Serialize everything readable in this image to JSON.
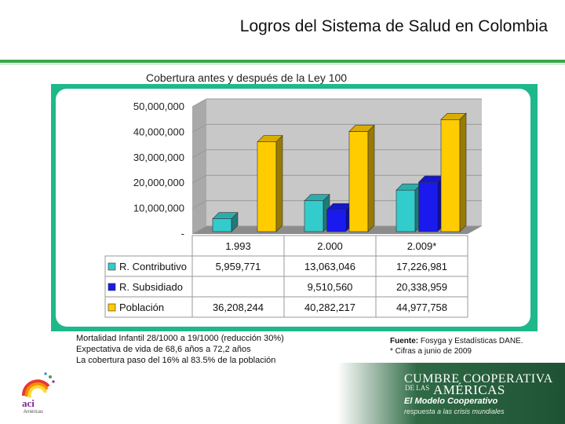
{
  "header": {
    "title": "Logros del Sistema de Salud en Colombia"
  },
  "chart_data": {
    "type": "bar",
    "title": "Cobertura antes y después de la Ley 100",
    "categories": [
      "1.993",
      "2.000",
      "2.009*"
    ],
    "series": [
      {
        "name": "R. Contributivo",
        "color": "#33cccc",
        "values": [
          5959771,
          13063046,
          17226981
        ],
        "labels": [
          "5,959,771",
          "13,063,046",
          "17,226,981"
        ]
      },
      {
        "name": "R. Subsidiado",
        "color": "#1a1aee",
        "values": [
          null,
          9510560,
          20338959
        ],
        "labels": [
          "",
          "9,510,560",
          "20,338,959"
        ]
      },
      {
        "name": "Población",
        "color": "#ffcc00",
        "values": [
          36208244,
          40282217,
          44977758
        ],
        "labels": [
          "36,208,244",
          "40,282,217",
          "44,977,758"
        ]
      }
    ],
    "yticks": [
      "50,000,000",
      "40,000,000",
      "30,000,000",
      "20,000,000",
      "10,000,000",
      "-"
    ],
    "ylim": [
      0,
      50000000
    ],
    "grid": true,
    "legend": "data-table"
  },
  "notes": {
    "line1": "Mortalidad Infantil 28/1000 a 19/1000 (reducción 30%)",
    "line2": "Expectativa de vida de 68,6 años a 72,2 años",
    "line3": "La cobertura paso del 16% al 83.5% de la población"
  },
  "source": {
    "label": "Fuente:",
    "text": "Fosyga y Estadísticas DANE.",
    "footnote": "* Cifras a junio de 2009"
  },
  "branding": {
    "line1": "CUMBRE COOPERATIVA",
    "line2": "DE LAS",
    "line3": "AMÉRICAS",
    "line4": "El Modelo Cooperativo",
    "line5": "respuesta a las crisis mundiales"
  },
  "logo": {
    "text": "aci",
    "sub": "Américas"
  }
}
